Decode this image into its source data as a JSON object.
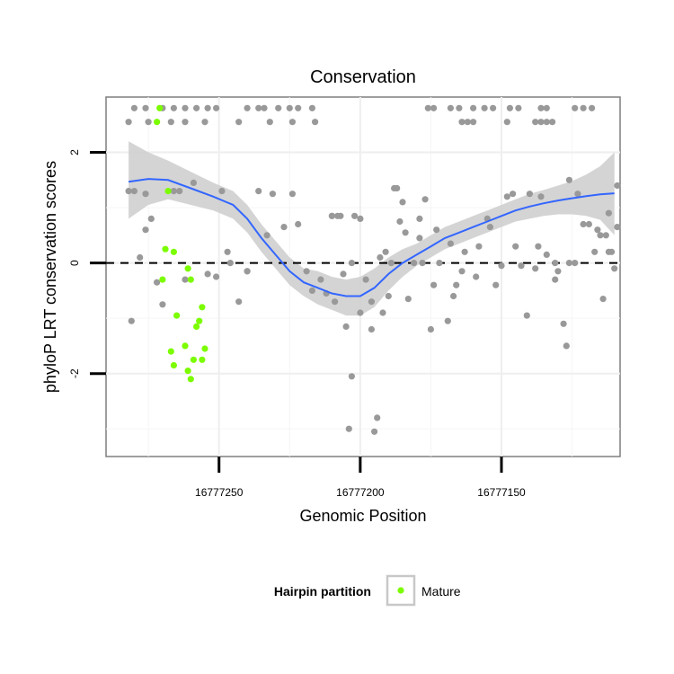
{
  "chart_data": {
    "type": "scatter",
    "title": "Conservation",
    "xlabel": "Genomic Position",
    "ylabel": "phyloP LRT conservation scores",
    "x_reversed": true,
    "xlim": [
      16777290,
      16777108
    ],
    "ylim": [
      -3.5,
      3.0
    ],
    "x_ticks": [
      16777250,
      16777200,
      16777150
    ],
    "x_tick_labels": [
      "16777250",
      "16777200",
      "16777150"
    ],
    "y_ticks": [
      -2,
      0,
      2
    ],
    "y_tick_labels": [
      "-2",
      "0",
      "2"
    ],
    "grid": true,
    "reference_line": {
      "y": 0,
      "style": "dashed"
    },
    "legend": {
      "title": "Hairpin partition",
      "entries": [
        {
          "label": "Mature",
          "color": "#7cfc00"
        }
      ],
      "position": "bottom"
    },
    "colors": {
      "other": "#999999",
      "mature": "#7cfc00",
      "smooth": "#3366ff",
      "band": "#cccccc"
    },
    "series": [
      {
        "role": "other",
        "points": [
          [
            16777282,
            2.55
          ],
          [
            16777280,
            2.8
          ],
          [
            16777276,
            2.8
          ],
          [
            16777270,
            2.8
          ],
          [
            16777266,
            2.8
          ],
          [
            16777262,
            2.8
          ],
          [
            16777258,
            2.8
          ],
          [
            16777254,
            2.8
          ],
          [
            16777251,
            2.8
          ],
          [
            16777240,
            2.8
          ],
          [
            16777236,
            2.8
          ],
          [
            16777234,
            2.8
          ],
          [
            16777229,
            2.8
          ],
          [
            16777225,
            2.8
          ],
          [
            16777222,
            2.8
          ],
          [
            16777217,
            2.8
          ],
          [
            16777232,
            2.55
          ],
          [
            16777243,
            2.55
          ],
          [
            16777255,
            2.55
          ],
          [
            16777262,
            2.55
          ],
          [
            16777275,
            2.55
          ],
          [
            16777267,
            2.55
          ],
          [
            16777224,
            2.55
          ],
          [
            16777216,
            2.55
          ],
          [
            16777136,
            2.8
          ],
          [
            16777134,
            2.8
          ],
          [
            16777124,
            2.8
          ],
          [
            16777121,
            2.8
          ],
          [
            16777118,
            2.8
          ],
          [
            16777156,
            2.8
          ],
          [
            16777160,
            2.8
          ],
          [
            16777165,
            2.8
          ],
          [
            16777168,
            2.8
          ],
          [
            16777174,
            2.8
          ],
          [
            16777176,
            2.8
          ],
          [
            16777144,
            2.8
          ],
          [
            16777147,
            2.8
          ],
          [
            16777153,
            2.8
          ],
          [
            16777164,
            2.55
          ],
          [
            16777162,
            2.55
          ],
          [
            16777160,
            2.55
          ],
          [
            16777138,
            2.55
          ],
          [
            16777136,
            2.55
          ],
          [
            16777134,
            2.55
          ],
          [
            16777132,
            2.55
          ],
          [
            16777148,
            2.55
          ],
          [
            16777281,
            -1.05
          ],
          [
            16777278,
            0.1
          ],
          [
            16777276,
            0.6
          ],
          [
            16777272,
            -0.35
          ],
          [
            16777270,
            -0.75
          ],
          [
            16777266,
            1.3
          ],
          [
            16777262,
            -0.3
          ],
          [
            16777259,
            1.45
          ],
          [
            16777254,
            -0.2
          ],
          [
            16777251,
            -0.25
          ],
          [
            16777249,
            1.3
          ],
          [
            16777247,
            0.2
          ],
          [
            16777243,
            -0.7
          ],
          [
            16777240,
            -0.15
          ],
          [
            16777236,
            1.3
          ],
          [
            16777233,
            0.5
          ],
          [
            16777231,
            1.25
          ],
          [
            16777227,
            0.65
          ],
          [
            16777224,
            1.25
          ],
          [
            16777222,
            0.7
          ],
          [
            16777280,
            1.3
          ],
          [
            16777276,
            1.25
          ],
          [
            16777274,
            0.8
          ],
          [
            16777282,
            1.3
          ],
          [
            16777264,
            1.3
          ],
          [
            16777246,
            0.0
          ],
          [
            16777196,
            -1.2
          ],
          [
            16777192,
            -0.9
          ],
          [
            16777196,
            -0.7
          ],
          [
            16777203,
            0.0
          ],
          [
            16777206,
            -0.2
          ],
          [
            16777209,
            -0.7
          ],
          [
            16777212,
            -0.55
          ],
          [
            16777214,
            -0.3
          ],
          [
            16777210,
            0.85
          ],
          [
            16777208,
            0.85
          ],
          [
            16777207,
            0.85
          ],
          [
            16777202,
            0.85
          ],
          [
            16777193,
            0.1
          ],
          [
            16777191,
            0.2
          ],
          [
            16777189,
            0.0
          ],
          [
            16777188,
            1.35
          ],
          [
            16777187,
            1.35
          ],
          [
            16777185,
            1.1
          ],
          [
            16777183,
            -0.65
          ],
          [
            16777181,
            0.0
          ],
          [
            16777179,
            0.45
          ],
          [
            16777177,
            1.15
          ],
          [
            16777175,
            -1.2
          ],
          [
            16777173,
            0.6
          ],
          [
            16777172,
            0.0
          ],
          [
            16777169,
            -1.05
          ],
          [
            16777167,
            -0.6
          ],
          [
            16777166,
            -0.4
          ],
          [
            16777164,
            -0.15
          ],
          [
            16777163,
            0.2
          ],
          [
            16777159,
            -0.25
          ],
          [
            16777155,
            0.8
          ],
          [
            16777158,
            0.3
          ],
          [
            16777150,
            -0.05
          ],
          [
            16777148,
            1.2
          ],
          [
            16777143,
            -0.05
          ],
          [
            16777141,
            -0.95
          ],
          [
            16777137,
            0.3
          ],
          [
            16777134,
            0.15
          ],
          [
            16777131,
            -0.3
          ],
          [
            16777130,
            -0.15
          ],
          [
            16777128,
            -1.1
          ],
          [
            16777127,
            -1.5
          ],
          [
            16777124,
            0.0
          ],
          [
            16777121,
            0.7
          ],
          [
            16777119,
            0.7
          ],
          [
            16777117,
            0.2
          ],
          [
            16777115,
            0.5
          ],
          [
            16777113,
            0.5
          ],
          [
            16777111,
            0.2
          ],
          [
            16777110,
            -0.1
          ],
          [
            16777146,
            1.25
          ],
          [
            16777140,
            1.25
          ],
          [
            16777131,
            0.0
          ],
          [
            16777123,
            1.25
          ],
          [
            16777116,
            0.6
          ],
          [
            16777112,
            0.2
          ],
          [
            16777210,
            0.85
          ],
          [
            16777217,
            -0.5
          ],
          [
            16777200,
            -0.9
          ],
          [
            16777198,
            -0.3
          ],
          [
            16777195,
            -3.05
          ],
          [
            16777194,
            -2.8
          ],
          [
            16777204,
            -3.0
          ],
          [
            16777203,
            -2.05
          ],
          [
            16777205,
            -1.15
          ],
          [
            16777190,
            -0.6
          ],
          [
            16777184,
            0.55
          ],
          [
            16777152,
            -0.4
          ],
          [
            16777145,
            0.3
          ],
          [
            16777136,
            1.2
          ],
          [
            16777114,
            -0.65
          ],
          [
            16777109,
            0.65
          ],
          [
            16777126,
            1.5
          ],
          [
            16777138,
            -0.1
          ],
          [
            16777200,
            0.8
          ],
          [
            16777240,
            -0.15
          ],
          [
            16777219,
            -0.15
          ],
          [
            16777154,
            0.65
          ],
          [
            16777168,
            0.35
          ],
          [
            16777174,
            -0.4
          ],
          [
            16777179,
            0.8
          ],
          [
            16777109,
            1.4
          ],
          [
            16777112,
            0.9
          ],
          [
            16777126,
            0.0
          ],
          [
            16777186,
            0.75
          ],
          [
            16777178,
            0.0
          ]
        ]
      },
      {
        "role": "mature",
        "name": "Mature",
        "points": [
          [
            16777271,
            2.8
          ],
          [
            16777272,
            2.55
          ],
          [
            16777268,
            1.3
          ],
          [
            16777269,
            0.25
          ],
          [
            16777266,
            0.2
          ],
          [
            16777270,
            -0.3
          ],
          [
            16777261,
            -0.1
          ],
          [
            16777260,
            -0.3
          ],
          [
            16777265,
            -0.95
          ],
          [
            16777258,
            -1.15
          ],
          [
            16777257,
            -1.05
          ],
          [
            16777256,
            -0.8
          ],
          [
            16777267,
            -1.6
          ],
          [
            16777262,
            -1.5
          ],
          [
            16777259,
            -1.75
          ],
          [
            16777266,
            -1.85
          ],
          [
            16777261,
            -1.95
          ],
          [
            16777260,
            -2.1
          ],
          [
            16777256,
            -1.75
          ],
          [
            16777255,
            -1.55
          ]
        ]
      }
    ],
    "smooth": {
      "method": "loess",
      "fit": [
        [
          16777282,
          1.47
        ],
        [
          16777275,
          1.52
        ],
        [
          16777268,
          1.5
        ],
        [
          16777260,
          1.35
        ],
        [
          16777252,
          1.2
        ],
        [
          16777245,
          1.05
        ],
        [
          16777240,
          0.8
        ],
        [
          16777235,
          0.45
        ],
        [
          16777230,
          0.15
        ],
        [
          16777225,
          -0.15
        ],
        [
          16777220,
          -0.35
        ],
        [
          16777215,
          -0.45
        ],
        [
          16777210,
          -0.55
        ],
        [
          16777205,
          -0.6
        ],
        [
          16777200,
          -0.6
        ],
        [
          16777195,
          -0.45
        ],
        [
          16777190,
          -0.2
        ],
        [
          16777185,
          0.0
        ],
        [
          16777180,
          0.15
        ],
        [
          16777175,
          0.3
        ],
        [
          16777170,
          0.45
        ],
        [
          16777165,
          0.55
        ],
        [
          16777160,
          0.65
        ],
        [
          16777155,
          0.75
        ],
        [
          16777150,
          0.85
        ],
        [
          16777145,
          0.95
        ],
        [
          16777140,
          1.02
        ],
        [
          16777135,
          1.08
        ],
        [
          16777130,
          1.13
        ],
        [
          16777125,
          1.17
        ],
        [
          16777120,
          1.21
        ],
        [
          16777115,
          1.24
        ],
        [
          16777110,
          1.26
        ]
      ],
      "band": [
        [
          16777282,
          0.8,
          2.2
        ],
        [
          16777275,
          1.05,
          2.0
        ],
        [
          16777268,
          1.15,
          1.85
        ],
        [
          16777260,
          1.05,
          1.65
        ],
        [
          16777252,
          0.95,
          1.45
        ],
        [
          16777245,
          0.8,
          1.3
        ],
        [
          16777240,
          0.55,
          1.05
        ],
        [
          16777235,
          0.2,
          0.7
        ],
        [
          16777230,
          -0.1,
          0.4
        ],
        [
          16777225,
          -0.4,
          0.1
        ],
        [
          16777220,
          -0.6,
          -0.1
        ],
        [
          16777215,
          -0.75,
          -0.15
        ],
        [
          16777210,
          -0.85,
          -0.25
        ],
        [
          16777205,
          -0.95,
          -0.3
        ],
        [
          16777200,
          -0.95,
          -0.25
        ],
        [
          16777195,
          -0.8,
          -0.1
        ],
        [
          16777190,
          -0.5,
          0.1
        ],
        [
          16777185,
          -0.25,
          0.25
        ],
        [
          16777180,
          -0.05,
          0.35
        ],
        [
          16777175,
          0.1,
          0.5
        ],
        [
          16777170,
          0.25,
          0.65
        ],
        [
          16777165,
          0.35,
          0.75
        ],
        [
          16777160,
          0.45,
          0.85
        ],
        [
          16777155,
          0.55,
          0.95
        ],
        [
          16777150,
          0.65,
          1.05
        ],
        [
          16777145,
          0.75,
          1.15
        ],
        [
          16777140,
          0.8,
          1.25
        ],
        [
          16777135,
          0.85,
          1.32
        ],
        [
          16777130,
          0.88,
          1.4
        ],
        [
          16777125,
          0.88,
          1.48
        ],
        [
          16777120,
          0.85,
          1.6
        ],
        [
          16777115,
          0.78,
          1.75
        ],
        [
          16777110,
          0.5,
          2.0
        ]
      ]
    }
  }
}
